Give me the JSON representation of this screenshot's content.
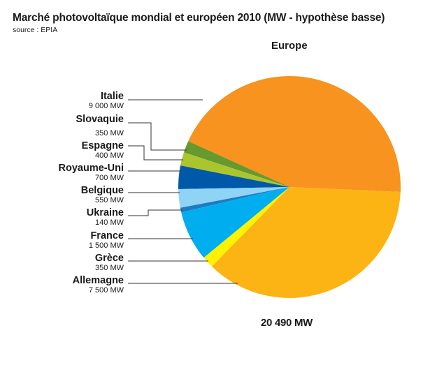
{
  "header": {
    "title": "Marché photovoltaïque mondial et européen 2010 (MW - hypothèse basse)",
    "source": "source : EPIA",
    "subtitle": "Europe",
    "total": "20 490 MW"
  },
  "chart_data": {
    "type": "pie",
    "title": "Marché photovoltaïque mondial et européen 2010 (MW - hypothèse basse)",
    "subtitle": "Europe",
    "unit": "MW",
    "total": 20490,
    "categories": [
      "Italie",
      "Slovaquie",
      "Espagne",
      "Royaume-Uni",
      "Belgique",
      "Ukraine",
      "France",
      "Grèce",
      "Allemagne"
    ],
    "values": [
      9000,
      350,
      400,
      700,
      550,
      140,
      1500,
      350,
      7500
    ],
    "value_labels": [
      "9 000 MW",
      "350 MW",
      "400 MW",
      "700 MW",
      "550 MW",
      "140 MW",
      "1 500 MW",
      "350 MW",
      "7 500 MW"
    ],
    "colors": [
      "#f7931e",
      "#66992e",
      "#abc52e",
      "#0059a8",
      "#8fd3f5",
      "#1b7cc4",
      "#00aeef",
      "#fff200",
      "#fbb414"
    ],
    "legend_position": "left (leader lines)"
  },
  "labels": [
    {
      "name": "Italie",
      "value": "9 000 MW"
    },
    {
      "name": "Slovaquie",
      "value": "350 MW"
    },
    {
      "name": "Espagne",
      "value": "400 MW"
    },
    {
      "name": "Royaume-Uni",
      "value": "700 MW"
    },
    {
      "name": "Belgique",
      "value": "550 MW"
    },
    {
      "name": "Ukraine",
      "value": "140 MW"
    },
    {
      "name": "France",
      "value": "1 500 MW"
    },
    {
      "name": "Grèce",
      "value": "350 MW"
    },
    {
      "name": "Allemagne",
      "value": "7 500 MW"
    }
  ]
}
